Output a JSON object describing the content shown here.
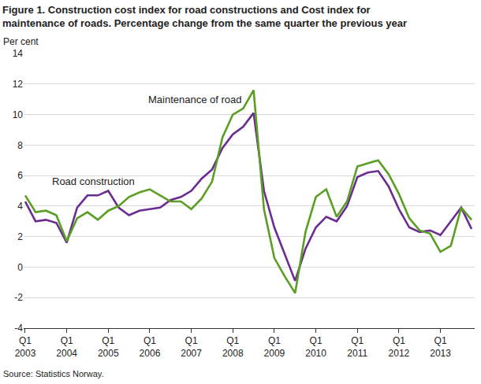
{
  "chart_data": {
    "type": "line",
    "title": "Figure 1. Construction cost index for road constructions and Cost index for maintenance of roads. Percentage change from the same quarter the previous year",
    "ylabel": "Per cent",
    "source": "Source: Statistics Norway.",
    "categories": [
      "Q1 2003",
      null,
      null,
      null,
      "Q1 2004",
      null,
      null,
      null,
      "Q1 2005",
      null,
      null,
      null,
      "Q1 2006",
      null,
      null,
      null,
      "Q1 2007",
      null,
      null,
      null,
      "Q1 2008",
      null,
      null,
      null,
      "Q1 2009",
      null,
      null,
      null,
      "Q1 2010",
      null,
      null,
      null,
      "Q1 2011",
      null,
      null,
      null,
      "Q1 2012",
      null,
      null,
      null,
      "Q1 2013",
      null,
      null,
      null
    ],
    "series": [
      {
        "name": "Road construction",
        "color": "#6b2c91",
        "values": [
          4.3,
          3.0,
          3.1,
          2.9,
          1.6,
          3.9,
          4.7,
          4.7,
          5.0,
          3.9,
          3.4,
          3.7,
          3.8,
          3.9,
          4.4,
          4.6,
          5.0,
          5.8,
          6.4,
          7.8,
          8.7,
          9.2,
          10.1,
          5.0,
          2.6,
          0.8,
          -0.9,
          1.2,
          2.6,
          3.3,
          3.0,
          4.0,
          5.9,
          6.2,
          6.3,
          5.3,
          3.8,
          2.6,
          2.3,
          2.4,
          2.1,
          3.0,
          3.9,
          2.5
        ]
      },
      {
        "name": "Maintenance of road",
        "color": "#5a9e23",
        "values": [
          4.7,
          3.6,
          3.7,
          3.4,
          1.7,
          3.2,
          3.6,
          3.1,
          3.7,
          4.0,
          4.6,
          4.9,
          5.1,
          4.7,
          4.3,
          4.3,
          3.8,
          4.5,
          5.6,
          8.5,
          10.0,
          10.4,
          11.6,
          3.8,
          0.6,
          -0.6,
          -1.7,
          2.3,
          4.6,
          5.1,
          3.3,
          4.3,
          6.6,
          6.8,
          7.0,
          6.1,
          4.8,
          3.2,
          2.4,
          2.2,
          1.0,
          1.4,
          3.9,
          3.1
        ]
      }
    ],
    "ylim": [
      -4,
      14
    ],
    "yticks": [
      -4,
      -2,
      0,
      2,
      4,
      6,
      8,
      10,
      12,
      14
    ],
    "grid": true
  }
}
